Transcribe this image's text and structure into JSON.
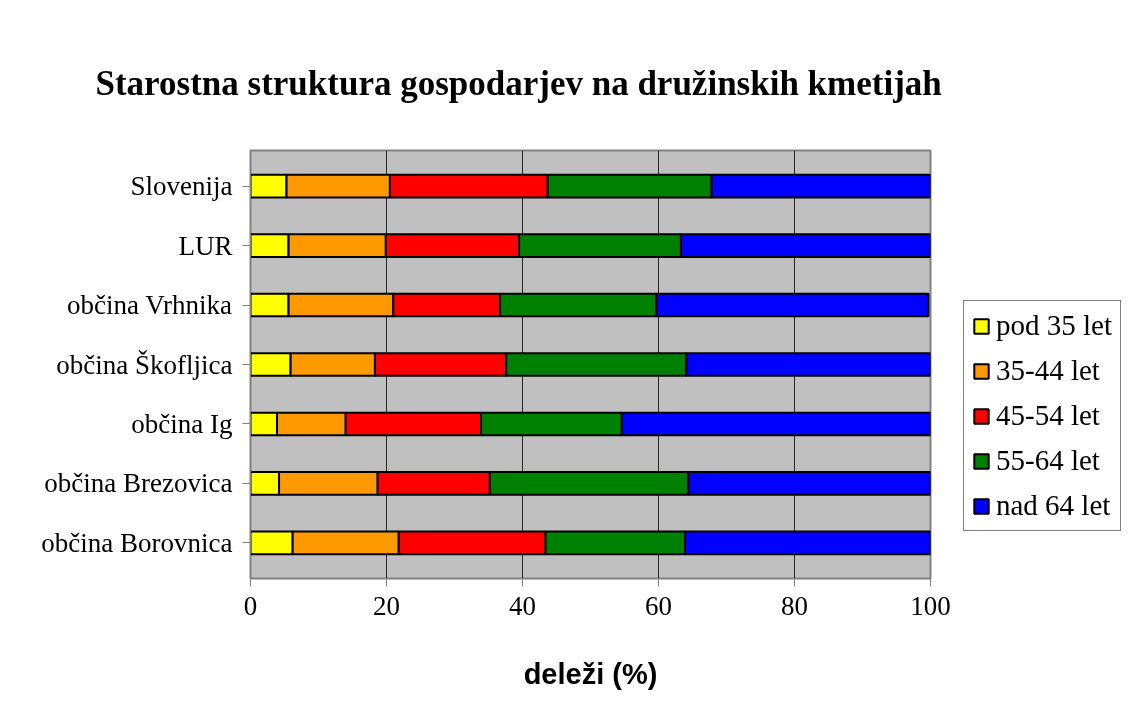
{
  "chart_data": {
    "type": "bar",
    "orientation": "horizontal",
    "stacked": true,
    "title": "Starostna struktura gospodarjev na družinskih kmetijah",
    "xlabel": "deleži (%)",
    "categories": [
      "Slovenija",
      "LUR",
      "občina Vrhnika",
      "občina Škofljica",
      "občina Ig",
      "občina Brezovica",
      "občina Borovnica"
    ],
    "series": [
      {
        "name": "pod 35 let",
        "color": "#ffff00",
        "values": [
          5.3,
          5.6,
          5.6,
          5.9,
          3.9,
          4.2,
          6.2
        ]
      },
      {
        "name": "35-44 let",
        "color": "#ff9900",
        "values": [
          15.2,
          14.3,
          15.4,
          12.4,
          10.1,
          14.5,
          15.6
        ]
      },
      {
        "name": "45-54 let",
        "color": "#ff0000",
        "values": [
          23.2,
          19.6,
          15.7,
          19.3,
          19.9,
          16.5,
          21.6
        ]
      },
      {
        "name": "55-64 let",
        "color": "#008000",
        "values": [
          24.1,
          23.8,
          23.0,
          26.5,
          20.7,
          29.2,
          20.5
        ]
      },
      {
        "name": "nad 64 let",
        "color": "#0000ff",
        "values": [
          32.2,
          36.7,
          40.0,
          35.9,
          45.4,
          35.6,
          36.1
        ]
      }
    ],
    "xlim": [
      0,
      100
    ],
    "xticks": [
      0,
      20,
      40,
      60,
      80,
      100
    ],
    "grid": "x",
    "legend": "right"
  }
}
